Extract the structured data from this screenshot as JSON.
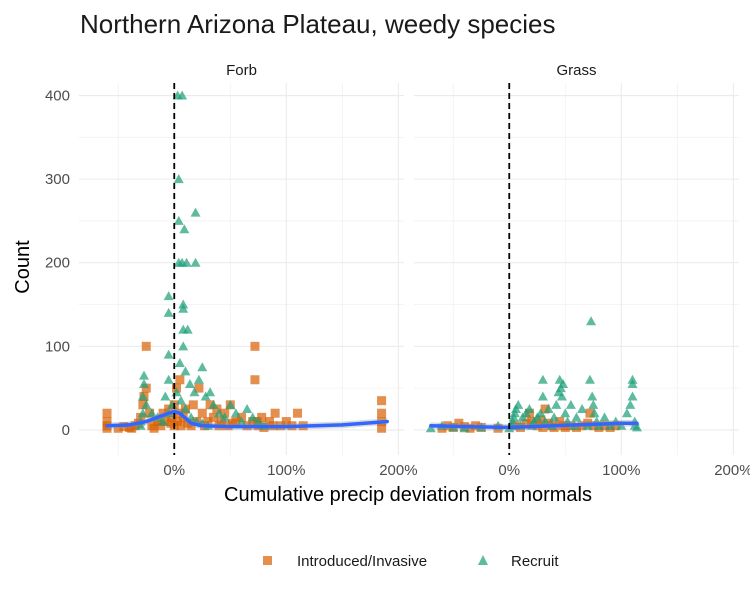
{
  "chart_data": {
    "type": "scatter",
    "title": "Northern Arizona Plateau, weedy species",
    "xlabel": "Cumulative precip deviation from normals",
    "ylabel": "Count",
    "x_ticks": [
      0,
      100,
      200
    ],
    "x_tick_labels": [
      "0%",
      "100%",
      "200%"
    ],
    "y_ticks": [
      0,
      100,
      200,
      300,
      400
    ],
    "y_tick_labels": [
      "0",
      "100",
      "200",
      "300",
      "400"
    ],
    "xlim": [
      -85,
      205
    ],
    "ylim": [
      -30,
      415
    ],
    "vline_x": 0,
    "grid": true,
    "legend_position": "bottom",
    "legend": [
      {
        "name": "Introduced/Invasive",
        "color": "#D95F02",
        "shape": "square"
      },
      {
        "name": "Recruit",
        "color": "#1B9E77",
        "shape": "triangle"
      }
    ],
    "smooth_color": "#3366FF",
    "panels": [
      {
        "name": "Forb",
        "series": [
          {
            "name": "Introduced/Invasive",
            "points": [
              [
                -60,
                2
              ],
              [
                -60,
                5
              ],
              [
                -60,
                10
              ],
              [
                -60,
                20
              ],
              [
                -50,
                2
              ],
              [
                -45,
                4
              ],
              [
                -40,
                3
              ],
              [
                -38,
                2
              ],
              [
                -35,
                5
              ],
              [
                -32,
                8
              ],
              [
                -30,
                15
              ],
              [
                -28,
                30
              ],
              [
                -27,
                40
              ],
              [
                -25,
                100
              ],
              [
                -25,
                50
              ],
              [
                -22,
                20
              ],
              [
                -20,
                5
              ],
              [
                -18,
                2
              ],
              [
                -15,
                10
              ],
              [
                -12,
                5
              ],
              [
                -10,
                20
              ],
              [
                -8,
                10
              ],
              [
                -5,
                25
              ],
              [
                -3,
                8
              ],
              [
                -2,
                15
              ],
              [
                0,
                30
              ],
              [
                0,
                5
              ],
              [
                2,
                50
              ],
              [
                3,
                10
              ],
              [
                4,
                20
              ],
              [
                5,
                60
              ],
              [
                6,
                5
              ],
              [
                8,
                15
              ],
              [
                10,
                25
              ],
              [
                12,
                8
              ],
              [
                15,
                5
              ],
              [
                17,
                30
              ],
              [
                20,
                10
              ],
              [
                22,
                50
              ],
              [
                25,
                20
              ],
              [
                27,
                5
              ],
              [
                30,
                10
              ],
              [
                32,
                30
              ],
              [
                35,
                15
              ],
              [
                38,
                25
              ],
              [
                40,
                5
              ],
              [
                42,
                10
              ],
              [
                45,
                20
              ],
              [
                48,
                5
              ],
              [
                50,
                30
              ],
              [
                52,
                8
              ],
              [
                55,
                10
              ],
              [
                60,
                15
              ],
              [
                65,
                5
              ],
              [
                70,
                10
              ],
              [
                72,
                100
              ],
              [
                72,
                60
              ],
              [
                74,
                10
              ],
              [
                75,
                5
              ],
              [
                78,
                15
              ],
              [
                80,
                3
              ],
              [
                85,
                10
              ],
              [
                88,
                5
              ],
              [
                90,
                20
              ],
              [
                95,
                5
              ],
              [
                100,
                10
              ],
              [
                105,
                5
              ],
              [
                110,
                20
              ],
              [
                115,
                5
              ],
              [
                185,
                2
              ],
              [
                185,
                10
              ],
              [
                185,
                20
              ],
              [
                185,
                35
              ]
            ]
          },
          {
            "name": "Recruit",
            "points": [
              [
                -30,
                5
              ],
              [
                -30,
                10
              ],
              [
                -28,
                20
              ],
              [
                -28,
                40
              ],
              [
                -27,
                55
              ],
              [
                -27,
                65
              ],
              [
                -25,
                30
              ],
              [
                -20,
                20
              ],
              [
                -15,
                15
              ],
              [
                -10,
                10
              ],
              [
                -5,
                20
              ],
              [
                -8,
                40
              ],
              [
                -5,
                60
              ],
              [
                -5,
                90
              ],
              [
                -5,
                140
              ],
              [
                -5,
                160
              ],
              [
                3,
                400
              ],
              [
                7,
                400
              ],
              [
                4,
                300
              ],
              [
                4,
                250
              ],
              [
                9,
                240
              ],
              [
                4,
                200
              ],
              [
                7,
                200
              ],
              [
                11,
                200
              ],
              [
                19,
                200
              ],
              [
                19,
                260
              ],
              [
                8,
                150
              ],
              [
                8,
                145
              ],
              [
                8,
                120
              ],
              [
                8,
                100
              ],
              [
                12,
                120
              ],
              [
                5,
                80
              ],
              [
                10,
                70
              ],
              [
                14,
                55
              ],
              [
                18,
                45
              ],
              [
                22,
                60
              ],
              [
                25,
                75
              ],
              [
                28,
                40
              ],
              [
                32,
                45
              ],
              [
                35,
                30
              ],
              [
                40,
                20
              ],
              [
                45,
                15
              ],
              [
                50,
                30
              ],
              [
                55,
                20
              ],
              [
                60,
                10
              ],
              [
                65,
                25
              ],
              [
                70,
                15
              ],
              [
                75,
                10
              ],
              [
                80,
                5
              ],
              [
                -2,
                30
              ],
              [
                2,
                45
              ],
              [
                6,
                35
              ],
              [
                10,
                25
              ],
              [
                15,
                15
              ],
              [
                20,
                10
              ],
              [
                25,
                8
              ],
              [
                30,
                5
              ]
            ]
          }
        ],
        "smooth": [
          [
            -60,
            5
          ],
          [
            -40,
            6
          ],
          [
            -25,
            10
          ],
          [
            -15,
            15
          ],
          [
            -5,
            20
          ],
          [
            0,
            22
          ],
          [
            5,
            20
          ],
          [
            10,
            14
          ],
          [
            15,
            8
          ],
          [
            25,
            5
          ],
          [
            50,
            4
          ],
          [
            100,
            4
          ],
          [
            150,
            6
          ],
          [
            190,
            10
          ]
        ]
      },
      {
        "name": "Grass",
        "series": [
          {
            "name": "Introduced/Invasive",
            "points": [
              [
                -60,
                2
              ],
              [
                -55,
                5
              ],
              [
                -50,
                3
              ],
              [
                -45,
                8
              ],
              [
                -40,
                4
              ],
              [
                -35,
                2
              ],
              [
                -30,
                5
              ],
              [
                -25,
                3
              ],
              [
                -10,
                2
              ],
              [
                5,
                5
              ],
              [
                10,
                3
              ],
              [
                15,
                8
              ],
              [
                18,
                20
              ],
              [
                20,
                10
              ],
              [
                25,
                5
              ],
              [
                28,
                12
              ],
              [
                30,
                3
              ],
              [
                32,
                25
              ],
              [
                35,
                8
              ],
              [
                38,
                5
              ],
              [
                40,
                3
              ],
              [
                45,
                10
              ],
              [
                48,
                5
              ],
              [
                50,
                3
              ],
              [
                55,
                5
              ],
              [
                60,
                3
              ],
              [
                65,
                5
              ],
              [
                70,
                8
              ],
              [
                72,
                20
              ],
              [
                75,
                5
              ],
              [
                80,
                3
              ],
              [
                85,
                5
              ],
              [
                90,
                3
              ],
              [
                95,
                5
              ]
            ]
          },
          {
            "name": "Recruit",
            "points": [
              [
                -70,
                2
              ],
              [
                -60,
                5
              ],
              [
                -50,
                3
              ],
              [
                -40,
                2
              ],
              [
                -25,
                3
              ],
              [
                -10,
                5
              ],
              [
                0,
                2
              ],
              [
                2,
                5
              ],
              [
                3,
                10
              ],
              [
                4,
                15
              ],
              [
                5,
                20
              ],
              [
                6,
                25
              ],
              [
                8,
                30
              ],
              [
                10,
                5
              ],
              [
                12,
                15
              ],
              [
                15,
                20
              ],
              [
                18,
                25
              ],
              [
                20,
                5
              ],
              [
                22,
                10
              ],
              [
                25,
                15
              ],
              [
                28,
                20
              ],
              [
                30,
                60
              ],
              [
                30,
                40
              ],
              [
                32,
                10
              ],
              [
                35,
                25
              ],
              [
                38,
                5
              ],
              [
                40,
                15
              ],
              [
                42,
                30
              ],
              [
                44,
                45
              ],
              [
                45,
                60
              ],
              [
                46,
                50
              ],
              [
                47,
                40
              ],
              [
                48,
                55
              ],
              [
                50,
                20
              ],
              [
                52,
                10
              ],
              [
                55,
                30
              ],
              [
                58,
                5
              ],
              [
                60,
                15
              ],
              [
                65,
                25
              ],
              [
                70,
                5
              ],
              [
                72,
                60
              ],
              [
                73,
                130
              ],
              [
                74,
                40
              ],
              [
                75,
                30
              ],
              [
                76,
                20
              ],
              [
                78,
                10
              ],
              [
                80,
                5
              ],
              [
                85,
                15
              ],
              [
                90,
                5
              ],
              [
                95,
                10
              ],
              [
                100,
                5
              ],
              [
                105,
                20
              ],
              [
                108,
                30
              ],
              [
                110,
                40
              ],
              [
                110,
                55
              ],
              [
                110,
                60
              ],
              [
                112,
                10
              ],
              [
                112,
                5
              ],
              [
                114,
                3
              ]
            ]
          }
        ],
        "smooth": [
          [
            -70,
            5
          ],
          [
            -40,
            4
          ],
          [
            0,
            3
          ],
          [
            20,
            4
          ],
          [
            40,
            5
          ],
          [
            60,
            6
          ],
          [
            80,
            7
          ],
          [
            100,
            8
          ],
          [
            114,
            8
          ]
        ]
      }
    ]
  }
}
